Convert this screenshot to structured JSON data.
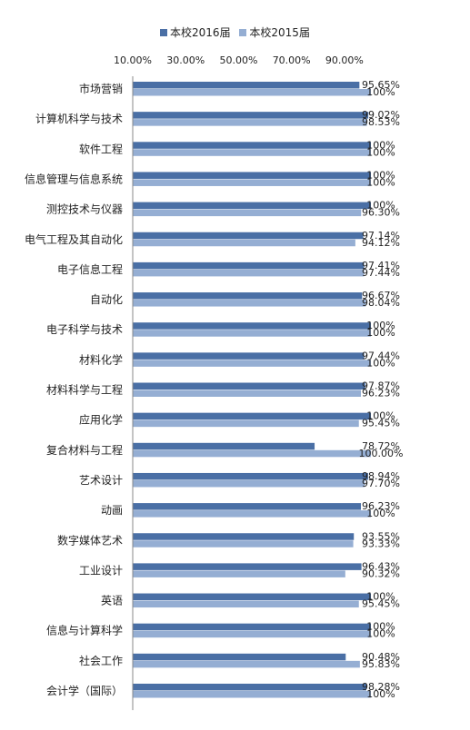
{
  "chart_data": {
    "type": "bar",
    "orientation": "horizontal",
    "title": "",
    "xlabel": "",
    "ylabel": "",
    "xlim": [
      10,
      100
    ],
    "x_ticks": [
      "10.00%",
      "30.00%",
      "50.00%",
      "70.00%",
      "90.00%"
    ],
    "x_tick_values": [
      10,
      30,
      50,
      70,
      90
    ],
    "x_axis_position": "top",
    "grid": false,
    "legend": "top",
    "categories": [
      "市场营销",
      "计算机科学与技术",
      "软件工程",
      "信息管理与信息系统",
      "测控技术与仪器",
      "电气工程及其自动化",
      "电子信息工程",
      "自动化",
      "电子科学与技术",
      "材料化学",
      "材料科学与工程",
      "应用化学",
      "复合材料与工程",
      "艺术设计",
      "动画",
      "数字媒体艺术",
      "工业设计",
      "英语",
      "信息与计算科学",
      "社会工作",
      "会计学（国际）"
    ],
    "series": [
      {
        "name": "本校2016届",
        "color": "#4a6fa5",
        "values": [
          95.65,
          99.02,
          100,
          100,
          100,
          97.14,
          97.41,
          96.67,
          100,
          97.44,
          97.87,
          100,
          78.72,
          98.94,
          96.23,
          93.55,
          96.43,
          100,
          100,
          90.48,
          98.28
        ],
        "labels": [
          "95.65%",
          "99.02%",
          "100%",
          "100%",
          "100%",
          "97.14%",
          "97.41%",
          "96.67%",
          "100%",
          "97.44%",
          "97.87%",
          "100%",
          "78.72%",
          "98.94%",
          "96.23%",
          "93.55%",
          "96.43%",
          "100%",
          "100%",
          "90.48%",
          "98.28%"
        ]
      },
      {
        "name": "本校2015届",
        "color": "#95aed3",
        "values": [
          100,
          98.53,
          100,
          100,
          96.3,
          94.12,
          97.44,
          98.04,
          100,
          100,
          96.23,
          95.45,
          100.0,
          97.7,
          100,
          93.33,
          90.32,
          95.45,
          100,
          95.83,
          100
        ],
        "labels": [
          "100%",
          "98.53%",
          "100%",
          "100%",
          "96.30%",
          "94.12%",
          "97.44%",
          "98.04%",
          "100%",
          "100%",
          "96.23%",
          "95.45%",
          "100.00%",
          "97.70%",
          "100%",
          "93.33%",
          "90.32%",
          "95.45%",
          "100%",
          "95.83%",
          "100%"
        ]
      }
    ]
  }
}
